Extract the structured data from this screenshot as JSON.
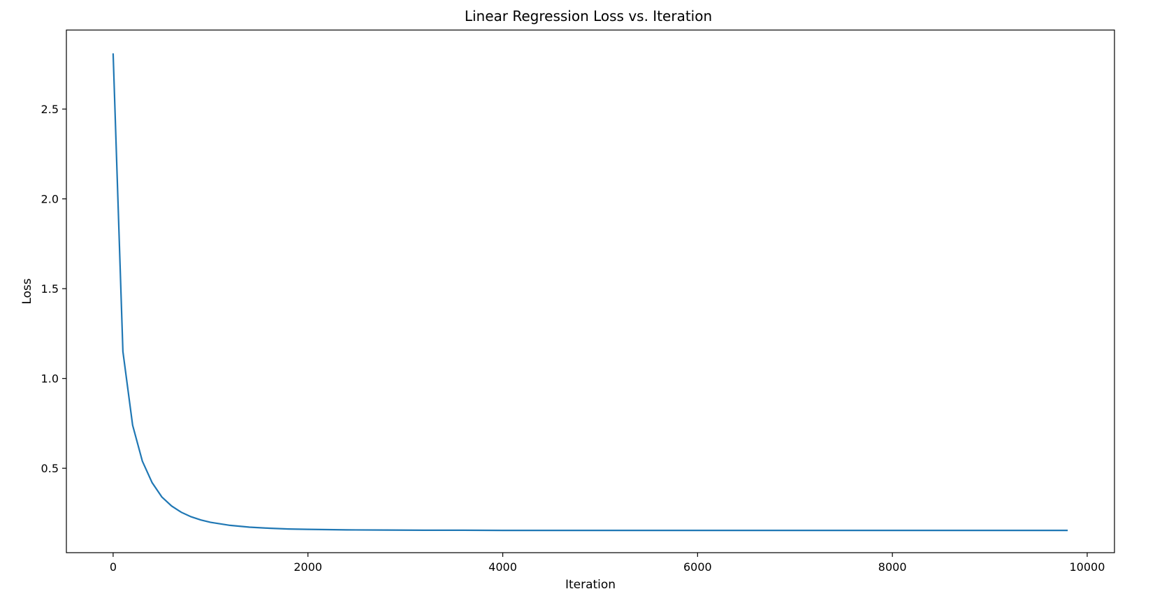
{
  "chart_data": {
    "type": "line",
    "title": "Linear Regression Loss vs. Iteration",
    "xlabel": "Iteration",
    "ylabel": "Loss",
    "xlim": [
      -480,
      10280
    ],
    "ylim": [
      0.03,
      2.94
    ],
    "x_ticks": [
      0,
      2000,
      4000,
      6000,
      8000,
      10000
    ],
    "y_ticks": [
      0.5,
      1.0,
      1.5,
      2.0,
      2.5
    ],
    "y_tick_labels": [
      "0.5",
      "1.0",
      "1.5",
      "2.0",
      "2.5"
    ],
    "grid": false,
    "legend": "none",
    "series": [
      {
        "color": "#1f77b4",
        "x": [
          0,
          100,
          200,
          300,
          400,
          500,
          600,
          700,
          800,
          900,
          1000,
          1200,
          1400,
          1600,
          1800,
          2000,
          2400,
          2800,
          3200,
          3600,
          4000,
          5000,
          6000,
          7000,
          8000,
          9000,
          9800
        ],
        "y": [
          2.81,
          1.15,
          0.74,
          0.54,
          0.42,
          0.34,
          0.29,
          0.255,
          0.23,
          0.212,
          0.199,
          0.182,
          0.172,
          0.166,
          0.162,
          0.16,
          0.157,
          0.156,
          0.155,
          0.155,
          0.154,
          0.154,
          0.154,
          0.154,
          0.154,
          0.154,
          0.154
        ]
      }
    ]
  }
}
